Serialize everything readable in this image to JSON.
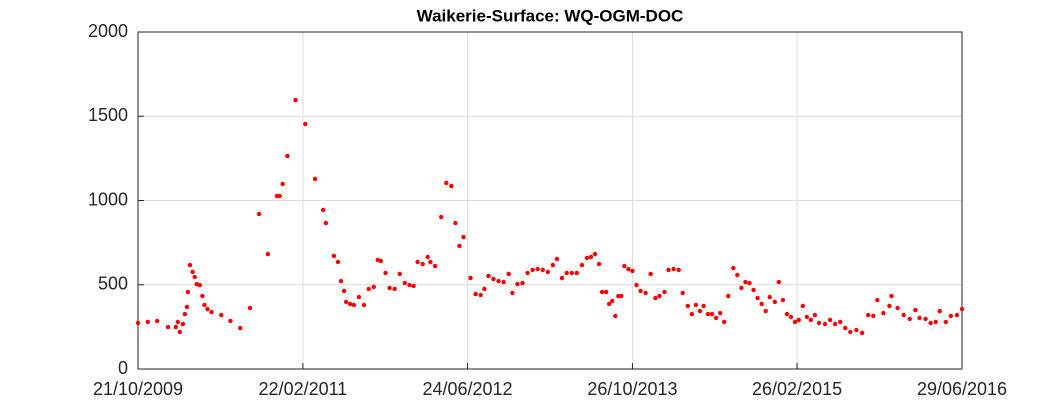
{
  "chart_data": {
    "type": "scatter",
    "title": "Waikerie-Surface: WQ-OGM-DOC",
    "x": [
      "21/10/2009",
      "19/11/2009",
      "17/12/2009",
      "18/01/2010",
      "10/02/2010",
      "16/02/2010",
      "22/02/2010",
      "03/03/2010",
      "09/03/2010",
      "15/03/2010",
      "18/03/2010",
      "24/03/2010",
      "01/04/2010",
      "07/04/2010",
      "13/04/2010",
      "22/04/2010",
      "30/04/2010",
      "06/05/2010",
      "15/05/2010",
      "27/05/2010",
      "25/06/2010",
      "22/07/2010",
      "20/08/2010",
      "18/09/2010",
      "15/10/2010",
      "10/11/2010",
      "07/12/2010",
      "15/12/2010",
      "24/12/2010",
      "07/01/2011",
      "31/01/2011",
      "01/03/2011",
      "30/03/2011",
      "23/04/2011",
      "01/05/2011",
      "25/05/2011",
      "06/06/2011",
      "15/06/2011",
      "24/06/2011",
      "30/06/2011",
      "12/07/2011",
      "23/07/2011",
      "07/08/2011",
      "22/08/2011",
      "05/09/2011",
      "20/09/2011",
      "02/10/2011",
      "11/10/2011",
      "25/10/2011",
      "06/11/2011",
      "21/11/2011",
      "06/12/2011",
      "21/12/2011",
      "04/01/2012",
      "16/01/2012",
      "28/01/2012",
      "12/02/2012",
      "27/02/2012",
      "06/03/2012",
      "20/03/2012",
      "07/04/2012",
      "22/04/2012",
      "07/05/2012",
      "19/05/2012",
      "31/05/2012",
      "12/06/2012",
      "03/07/2012",
      "18/07/2012",
      "02/08/2012",
      "13/08/2012",
      "25/08/2012",
      "09/09/2012",
      "24/09/2012",
      "09/10/2012",
      "24/10/2012",
      "04/11/2012",
      "19/11/2012",
      "04/12/2012",
      "19/12/2012",
      "03/01/2013",
      "18/01/2013",
      "02/02/2013",
      "17/02/2013",
      "04/03/2013",
      "16/03/2013",
      "31/03/2013",
      "14/04/2013",
      "29/04/2013",
      "14/05/2013",
      "29/05/2013",
      "13/06/2013",
      "25/06/2013",
      "07/07/2013",
      "19/07/2013",
      "28/07/2013",
      "09/08/2013",
      "18/08/2013",
      "27/08/2013",
      "05/09/2013",
      "14/09/2013",
      "23/09/2013",
      "02/10/2013",
      "14/10/2013",
      "26/10/2013",
      "07/11/2013",
      "19/11/2013",
      "04/12/2013",
      "19/12/2013",
      "02/01/2014",
      "14/01/2014",
      "29/01/2014",
      "10/02/2014",
      "25/02/2014",
      "12/03/2014",
      "24/03/2014",
      "08/04/2014",
      "20/04/2014",
      "02/05/2014",
      "14/05/2014",
      "25/05/2014",
      "07/06/2014",
      "19/06/2014",
      "01/07/2014",
      "13/07/2014",
      "25/07/2014",
      "06/08/2014",
      "21/08/2014",
      "02/09/2014",
      "14/09/2014",
      "26/09/2014",
      "08/10/2014",
      "20/10/2014",
      "01/11/2014",
      "13/11/2014",
      "25/11/2014",
      "07/12/2014",
      "22/12/2014",
      "03/01/2015",
      "15/01/2015",
      "27/01/2015",
      "08/02/2015",
      "20/02/2015",
      "03/03/2015",
      "15/03/2015",
      "27/03/2015",
      "08/04/2015",
      "20/04/2015",
      "02/05/2015",
      "20/05/2015",
      "04/06/2015",
      "19/06/2015",
      "04/07/2015",
      "19/07/2015",
      "03/08/2015",
      "21/08/2015",
      "07/09/2015",
      "25/09/2015",
      "10/10/2015",
      "22/10/2015",
      "09/11/2015",
      "27/11/2015",
      "03/12/2015",
      "21/12/2015",
      "08/01/2016",
      "26/01/2016",
      "12/02/2016",
      "24/02/2016",
      "13/03/2016",
      "28/03/2016",
      "12/04/2016",
      "24/04/2016",
      "12/05/2016",
      "27/05/2016",
      "14/06/2016",
      "29/06/2016"
    ],
    "values": [
      273,
      279,
      285,
      249,
      249,
      279,
      220,
      267,
      326,
      368,
      457,
      617,
      576,
      546,
      504,
      498,
      433,
      380,
      356,
      338,
      320,
      285,
      243,
      362,
      920,
      682,
      1027,
      1027,
      1098,
      1264,
      1596,
      1454,
      1128,
      944,
      866,
      671,
      635,
      522,
      463,
      398,
      386,
      380,
      427,
      380,
      475,
      487,
      647,
      641,
      570,
      481,
      475,
      564,
      510,
      498,
      493,
      635,
      623,
      665,
      635,
      611,
      902,
      1104,
      1086,
      866,
      730,
      783,
      540,
      445,
      439,
      475,
      552,
      534,
      522,
      516,
      564,
      451,
      504,
      510,
      570,
      588,
      593,
      588,
      576,
      617,
      653,
      540,
      570,
      570,
      570,
      617,
      659,
      665,
      682,
      623,
      457,
      457,
      386,
      404,
      315,
      433,
      433,
      611,
      593,
      582,
      498,
      463,
      451,
      564,
      421,
      433,
      457,
      588,
      593,
      588,
      451,
      374,
      326,
      380,
      344,
      374,
      326,
      326,
      303,
      332,
      279,
      433,
      599,
      558,
      481,
      516,
      510,
      469,
      421,
      386,
      344,
      427,
      398,
      516,
      409,
      326,
      309,
      279,
      291,
      374,
      309,
      291,
      320,
      273,
      267,
      291,
      267,
      279,
      243,
      220,
      231,
      214,
      320,
      315,
      409,
      332,
      374,
      433,
      362,
      320,
      297,
      350,
      303,
      297,
      273,
      279,
      344,
      279,
      315,
      320,
      356
    ],
    "color": "#ff0000",
    "xlim": [
      "21/10/2009",
      "29/06/2016"
    ],
    "xticks": [
      "21/10/2009",
      "22/02/2011",
      "24/06/2012",
      "26/10/2013",
      "26/02/2015",
      "29/06/2016"
    ],
    "ylim": [
      0,
      2000
    ],
    "yticks": [
      0,
      500,
      1000,
      1500,
      2000
    ],
    "grid": true
  }
}
